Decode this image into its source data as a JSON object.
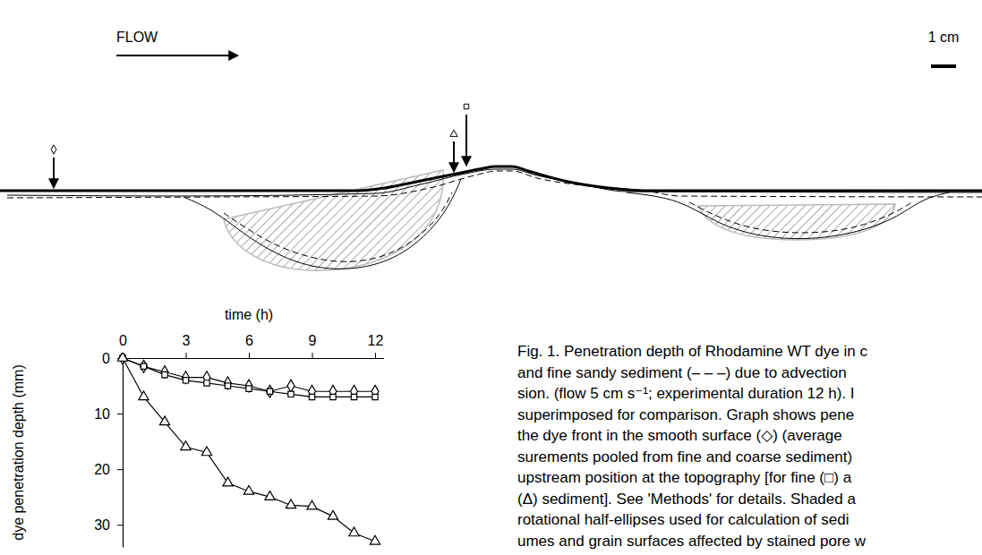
{
  "diagram": {
    "flow_label": "FLOW",
    "scale_label": "1 cm"
  },
  "chart_data": {
    "type": "line",
    "xlabel": "time (h)",
    "ylabel": "dye penetration depth (mm)",
    "x": [
      0,
      1,
      2,
      3,
      4,
      5,
      6,
      7,
      8,
      9,
      10,
      11,
      12
    ],
    "series": [
      {
        "marker": "diamond",
        "color": "#000000",
        "values": [
          0,
          1.5,
          2.5,
          3.5,
          3.5,
          4.5,
          5,
          6,
          5,
          6,
          6,
          6,
          6
        ]
      },
      {
        "marker": "square",
        "color": "#000000",
        "values": [
          0,
          1.5,
          3,
          4,
          4.5,
          5,
          5.5,
          6,
          6.5,
          7,
          7,
          7,
          7
        ]
      },
      {
        "marker": "triangle",
        "color": "#000000",
        "values": [
          0,
          7,
          11.5,
          16,
          17,
          22.5,
          24,
          25,
          26.5,
          26.7,
          28.5,
          31.5,
          33
        ]
      }
    ],
    "xlim": [
      0,
      12.4
    ],
    "ylim": [
      0,
      34
    ],
    "xticks": [
      0,
      3,
      6,
      9,
      12
    ],
    "yticks": [
      0,
      10,
      20,
      30
    ],
    "grid": false
  },
  "caption": {
    "lines": [
      "Fig. 1. Penetration depth of Rhodamine WT dye in c",
      "and fine sandy sediment (– – –) due to advection",
      "sion. (flow 5 cm s⁻¹; experimental duration 12 h). I",
      "superimposed for comparison. Graph shows pene",
      "the dye front in the smooth surface (◇) (average",
      "surements pooled from fine and coarse sediment)",
      "upstream position at the topography [for fine (□) a",
      "(Δ) sediment]. See 'Methods' for details. Shaded a",
      "rotational half-ellipses used for calculation of sedi",
      "umes and grain surfaces affected by stained pore w"
    ]
  }
}
